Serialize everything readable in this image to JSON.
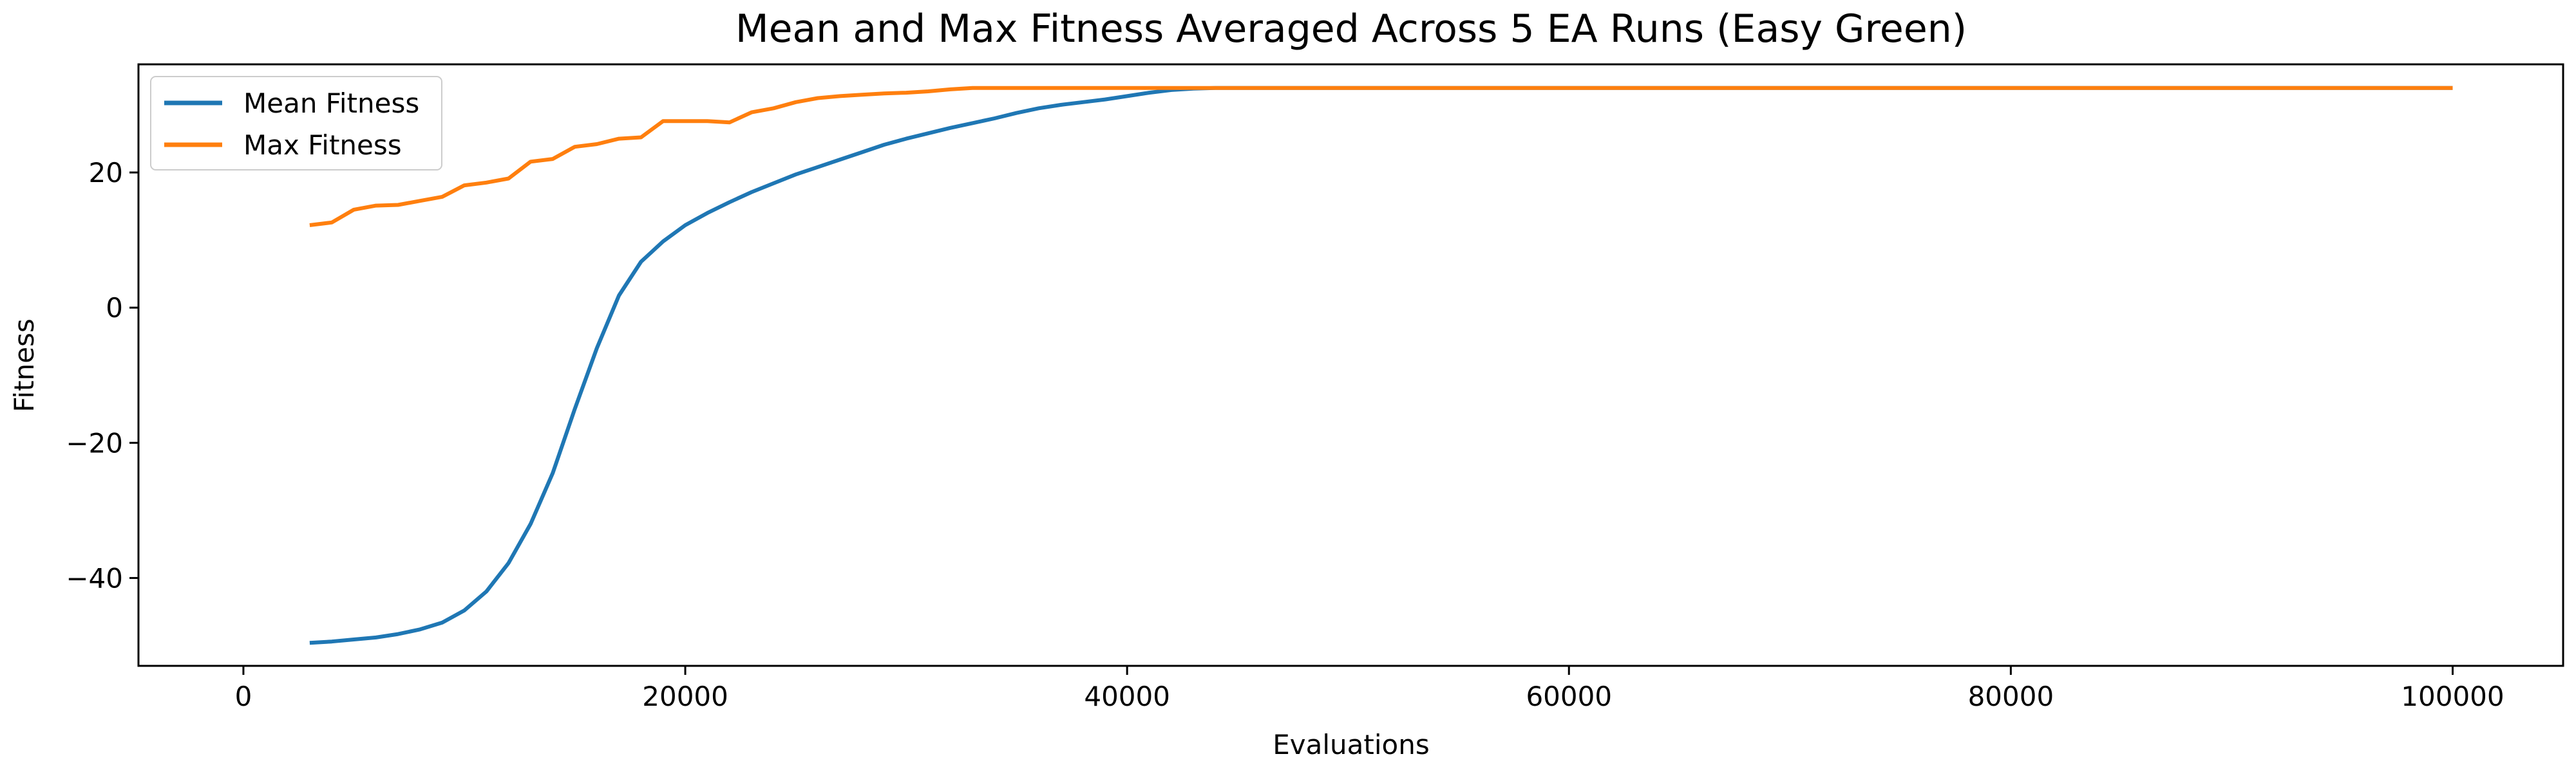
{
  "chart_data": {
    "type": "line",
    "title": "Mean and Max Fitness Averaged Across 5 EA Runs (Easy Green)",
    "xlabel": "Evaluations",
    "ylabel": "Fitness",
    "xlim": [
      -4750,
      105000
    ],
    "ylim": [
      -53,
      36
    ],
    "xticks": [
      0,
      20000,
      40000,
      60000,
      80000,
      100000
    ],
    "xtick_labels": [
      "0",
      "20000",
      "40000",
      "60000",
      "80000",
      "100000"
    ],
    "yticks": [
      -40,
      -20,
      0,
      20
    ],
    "ytick_labels": [
      "−40",
      "−20",
      "0",
      "20"
    ],
    "grid": false,
    "legend_position": "upper-left",
    "series": [
      {
        "name": "Mean Fitness",
        "color": "#1f77b4",
        "points": [
          [
            3000,
            -49.6
          ],
          [
            4000,
            -49.4
          ],
          [
            5000,
            -49.1
          ],
          [
            6000,
            -48.8
          ],
          [
            7000,
            -48.3
          ],
          [
            8000,
            -47.6
          ],
          [
            9000,
            -46.6
          ],
          [
            10000,
            -44.8
          ],
          [
            11000,
            -42.0
          ],
          [
            12000,
            -37.8
          ],
          [
            13000,
            -32.0
          ],
          [
            14000,
            -24.5
          ],
          [
            15000,
            -15.0
          ],
          [
            16000,
            -6.0
          ],
          [
            17000,
            1.8
          ],
          [
            18000,
            6.8
          ],
          [
            19000,
            9.8
          ],
          [
            20000,
            12.2
          ],
          [
            21000,
            14.0
          ],
          [
            22000,
            15.6
          ],
          [
            23000,
            17.1
          ],
          [
            24000,
            18.4
          ],
          [
            25000,
            19.7
          ],
          [
            26000,
            20.8
          ],
          [
            27000,
            21.9
          ],
          [
            28000,
            23.0
          ],
          [
            29000,
            24.1
          ],
          [
            30000,
            25.0
          ],
          [
            31000,
            25.8
          ],
          [
            32000,
            26.6
          ],
          [
            33000,
            27.3
          ],
          [
            34000,
            28.0
          ],
          [
            35000,
            28.8
          ],
          [
            36000,
            29.5
          ],
          [
            37000,
            30.0
          ],
          [
            38000,
            30.4
          ],
          [
            39000,
            30.8
          ],
          [
            40000,
            31.3
          ],
          [
            41000,
            31.8
          ],
          [
            42000,
            32.2
          ],
          [
            43000,
            32.4
          ],
          [
            44000,
            32.5
          ],
          [
            45000,
            32.5
          ],
          [
            50000,
            32.5
          ],
          [
            60000,
            32.5
          ],
          [
            70000,
            32.5
          ],
          [
            80000,
            32.5
          ],
          [
            90000,
            32.5
          ],
          [
            100000,
            32.5
          ]
        ]
      },
      {
        "name": "Max Fitness",
        "color": "#ff7f0e",
        "points": [
          [
            3000,
            12.2
          ],
          [
            4000,
            12.6
          ],
          [
            5000,
            14.5
          ],
          [
            6000,
            15.1
          ],
          [
            7000,
            15.2
          ],
          [
            8000,
            15.8
          ],
          [
            9000,
            16.4
          ],
          [
            10000,
            18.1
          ],
          [
            11000,
            18.5
          ],
          [
            12000,
            19.1
          ],
          [
            13000,
            21.6
          ],
          [
            14000,
            22.0
          ],
          [
            15000,
            23.8
          ],
          [
            16000,
            24.2
          ],
          [
            17000,
            25.0
          ],
          [
            18000,
            25.2
          ],
          [
            19000,
            27.6
          ],
          [
            20000,
            27.6
          ],
          [
            21000,
            27.6
          ],
          [
            22000,
            27.4
          ],
          [
            23000,
            28.9
          ],
          [
            24000,
            29.5
          ],
          [
            25000,
            30.4
          ],
          [
            26000,
            31.0
          ],
          [
            27000,
            31.3
          ],
          [
            28000,
            31.5
          ],
          [
            29000,
            31.7
          ],
          [
            30000,
            31.8
          ],
          [
            31000,
            32.0
          ],
          [
            32000,
            32.3
          ],
          [
            33000,
            32.5
          ],
          [
            40000,
            32.5
          ],
          [
            50000,
            32.5
          ],
          [
            60000,
            32.5
          ],
          [
            70000,
            32.5
          ],
          [
            80000,
            32.5
          ],
          [
            90000,
            32.5
          ],
          [
            100000,
            32.5
          ]
        ]
      }
    ]
  }
}
